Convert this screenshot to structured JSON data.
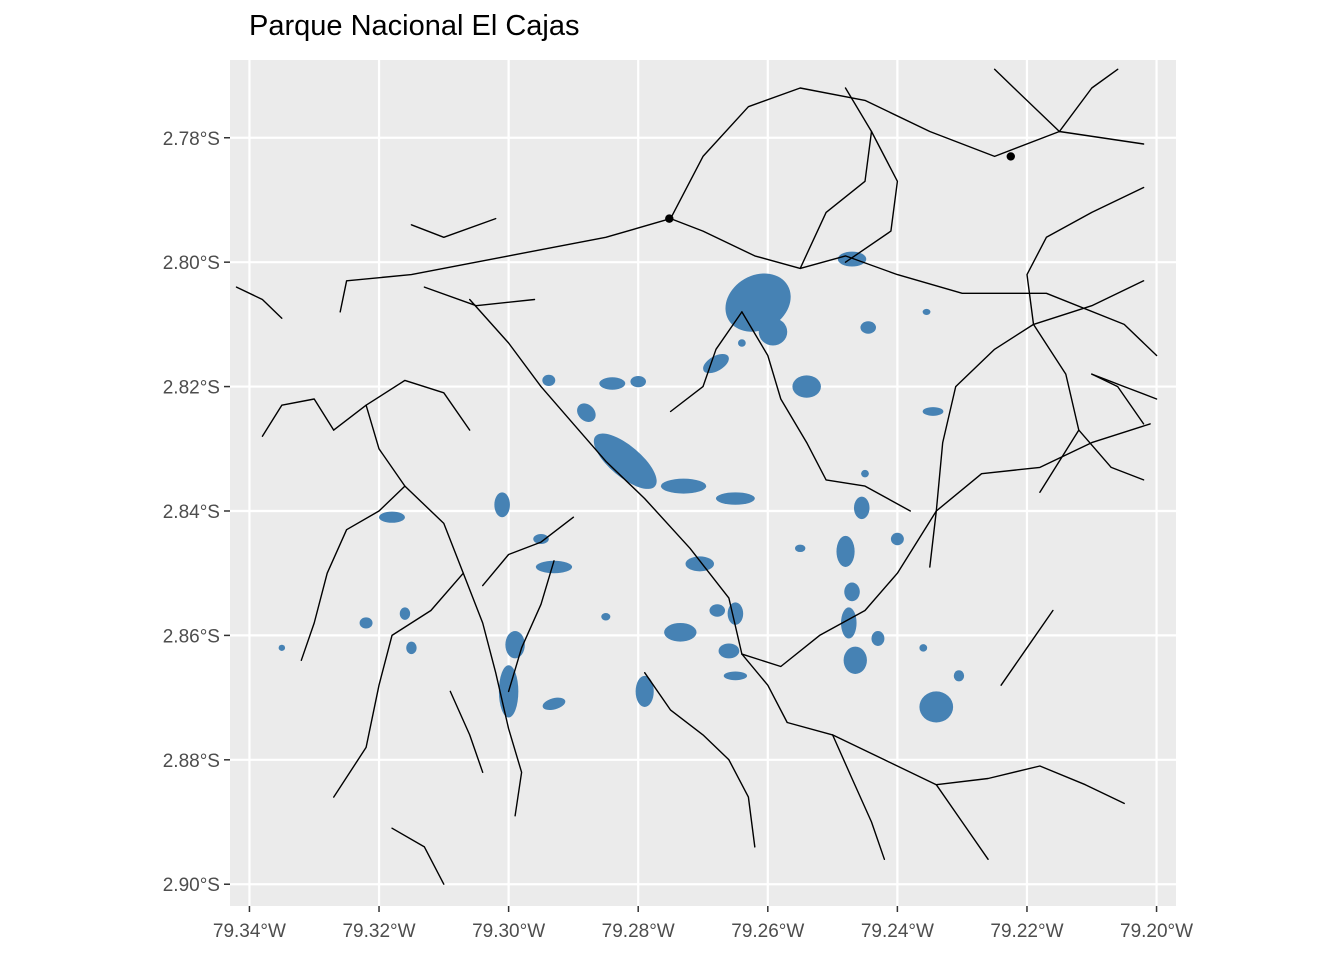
{
  "title": "Parque Nacional El Cajas",
  "colors": {
    "panel_background": "#ebebeb",
    "grid": "#ffffff",
    "lakes": "#4682b4",
    "rivers": "#000000",
    "tick_text": "#4d4d4d"
  },
  "axes": {
    "x": {
      "range": [
        -79.343,
        -79.197
      ],
      "ticks": [
        {
          "value": -79.34,
          "label": "79.34°W"
        },
        {
          "value": -79.32,
          "label": "79.32°W"
        },
        {
          "value": -79.3,
          "label": "79.30°W"
        },
        {
          "value": -79.28,
          "label": "79.28°W"
        },
        {
          "value": -79.26,
          "label": "79.26°W"
        },
        {
          "value": -79.24,
          "label": "79.24°W"
        },
        {
          "value": -79.22,
          "label": "79.22°W"
        },
        {
          "value": -79.2,
          "label": "79.20°W"
        }
      ]
    },
    "y": {
      "range": [
        -2.9035,
        -2.7675
      ],
      "ticks": [
        {
          "value": -2.78,
          "label": "2.78°S"
        },
        {
          "value": -2.8,
          "label": "2.80°S"
        },
        {
          "value": -2.82,
          "label": "2.82°S"
        },
        {
          "value": -2.84,
          "label": "2.84°S"
        },
        {
          "value": -2.86,
          "label": "2.86°S"
        },
        {
          "value": -2.88,
          "label": "2.88°S"
        },
        {
          "value": -2.9,
          "label": "2.90°S"
        }
      ]
    }
  },
  "lakes": [
    {
      "lon": -79.2615,
      "lat": -2.8065,
      "rx": 0.0042,
      "ry": 0.0055,
      "rot": 60
    },
    {
      "lon": -79.2592,
      "lat": -2.8112,
      "rx": 0.0022,
      "ry": 0.0022,
      "rot": 0
    },
    {
      "lon": -79.247,
      "lat": -2.7995,
      "rx": 0.0022,
      "ry": 0.0012,
      "rot": 0
    },
    {
      "lon": -79.268,
      "lat": -2.8163,
      "rx": 0.0022,
      "ry": 0.0012,
      "rot": -30
    },
    {
      "lon": -79.254,
      "lat": -2.82,
      "rx": 0.0022,
      "ry": 0.0018,
      "rot": 0
    },
    {
      "lon": -79.2445,
      "lat": -2.8105,
      "rx": 0.0012,
      "ry": 0.001,
      "rot": 0
    },
    {
      "lon": -79.2345,
      "lat": -2.824,
      "rx": 0.0016,
      "ry": 0.0007,
      "rot": 0
    },
    {
      "lon": -79.284,
      "lat": -2.8195,
      "rx": 0.002,
      "ry": 0.001,
      "rot": 0
    },
    {
      "lon": -79.28,
      "lat": -2.8192,
      "rx": 0.0012,
      "ry": 0.0009,
      "rot": 0
    },
    {
      "lon": -79.288,
      "lat": -2.8242,
      "rx": 0.0016,
      "ry": 0.0013,
      "rot": 45
    },
    {
      "lon": -79.2938,
      "lat": -2.819,
      "rx": 0.001,
      "ry": 0.0009,
      "rot": 0
    },
    {
      "lon": -79.282,
      "lat": -2.832,
      "rx": 0.006,
      "ry": 0.0025,
      "rot": 40
    },
    {
      "lon": -79.273,
      "lat": -2.836,
      "rx": 0.0035,
      "ry": 0.0012,
      "rot": 0
    },
    {
      "lon": -79.265,
      "lat": -2.838,
      "rx": 0.003,
      "ry": 0.001,
      "rot": 0
    },
    {
      "lon": -79.301,
      "lat": -2.839,
      "rx": 0.0012,
      "ry": 0.002,
      "rot": 0
    },
    {
      "lon": -79.318,
      "lat": -2.841,
      "rx": 0.002,
      "ry": 0.0009,
      "rot": 0
    },
    {
      "lon": -79.293,
      "lat": -2.849,
      "rx": 0.0028,
      "ry": 0.001,
      "rot": 0
    },
    {
      "lon": -79.295,
      "lat": -2.8445,
      "rx": 0.0012,
      "ry": 0.0008,
      "rot": 0
    },
    {
      "lon": -79.2705,
      "lat": -2.8485,
      "rx": 0.0022,
      "ry": 0.0012,
      "rot": 0
    },
    {
      "lon": -79.2678,
      "lat": -2.856,
      "rx": 0.0012,
      "ry": 0.001,
      "rot": 0
    },
    {
      "lon": -79.2735,
      "lat": -2.8595,
      "rx": 0.0025,
      "ry": 0.0015,
      "rot": 0
    },
    {
      "lon": -79.265,
      "lat": -2.8565,
      "rx": 0.0012,
      "ry": 0.0018,
      "rot": 0
    },
    {
      "lon": -79.266,
      "lat": -2.8625,
      "rx": 0.0016,
      "ry": 0.0012,
      "rot": 0
    },
    {
      "lon": -79.265,
      "lat": -2.8665,
      "rx": 0.0018,
      "ry": 0.0007,
      "rot": 0
    },
    {
      "lon": -79.299,
      "lat": -2.8615,
      "rx": 0.0015,
      "ry": 0.0022,
      "rot": 0
    },
    {
      "lon": -79.3,
      "lat": -2.869,
      "rx": 0.0015,
      "ry": 0.0042,
      "rot": 0
    },
    {
      "lon": -79.293,
      "lat": -2.871,
      "rx": 0.0018,
      "ry": 0.0009,
      "rot": -15
    },
    {
      "lon": -79.279,
      "lat": -2.869,
      "rx": 0.0014,
      "ry": 0.0025,
      "rot": 0
    },
    {
      "lon": -79.2455,
      "lat": -2.8395,
      "rx": 0.0012,
      "ry": 0.0018,
      "rot": 0
    },
    {
      "lon": -79.248,
      "lat": -2.8465,
      "rx": 0.0014,
      "ry": 0.0025,
      "rot": 0
    },
    {
      "lon": -79.247,
      "lat": -2.853,
      "rx": 0.0012,
      "ry": 0.0015,
      "rot": 0
    },
    {
      "lon": -79.2475,
      "lat": -2.858,
      "rx": 0.0012,
      "ry": 0.0025,
      "rot": 0
    },
    {
      "lon": -79.2465,
      "lat": -2.864,
      "rx": 0.0018,
      "ry": 0.0022,
      "rot": 0
    },
    {
      "lon": -79.243,
      "lat": -2.8605,
      "rx": 0.001,
      "ry": 0.0012,
      "rot": 0
    },
    {
      "lon": -79.24,
      "lat": -2.8445,
      "rx": 0.001,
      "ry": 0.001,
      "rot": 0
    },
    {
      "lon": -79.234,
      "lat": -2.8715,
      "rx": 0.0026,
      "ry": 0.0025,
      "rot": 0
    },
    {
      "lon": -79.2305,
      "lat": -2.8665,
      "rx": 0.0008,
      "ry": 0.0009,
      "rot": 0
    },
    {
      "lon": -79.236,
      "lat": -2.862,
      "rx": 0.0006,
      "ry": 0.0006,
      "rot": 0
    },
    {
      "lon": -79.322,
      "lat": -2.858,
      "rx": 0.001,
      "ry": 0.0009,
      "rot": 0
    },
    {
      "lon": -79.316,
      "lat": -2.8565,
      "rx": 0.0008,
      "ry": 0.001,
      "rot": 0
    },
    {
      "lon": -79.315,
      "lat": -2.862,
      "rx": 0.0008,
      "ry": 0.001,
      "rot": 0
    },
    {
      "lon": -79.264,
      "lat": -2.813,
      "rx": 0.0006,
      "ry": 0.0006,
      "rot": 0
    },
    {
      "lon": -79.2355,
      "lat": -2.808,
      "rx": 0.0006,
      "ry": 0.0005,
      "rot": 0
    },
    {
      "lon": -79.245,
      "lat": -2.834,
      "rx": 0.0006,
      "ry": 0.0006,
      "rot": 0
    },
    {
      "lon": -79.255,
      "lat": -2.846,
      "rx": 0.0008,
      "ry": 0.0006,
      "rot": 0
    },
    {
      "lon": -79.285,
      "lat": -2.857,
      "rx": 0.0007,
      "ry": 0.0006,
      "rot": 0
    },
    {
      "lon": -79.335,
      "lat": -2.862,
      "rx": 0.0005,
      "ry": 0.0005,
      "rot": 0
    }
  ],
  "rivers": [
    [
      [
        -79.275,
        -2.793
      ],
      [
        -79.27,
        -2.783
      ],
      [
        -79.263,
        -2.775
      ],
      [
        -79.255,
        -2.772
      ],
      [
        -79.245,
        -2.774
      ],
      [
        -79.235,
        -2.779
      ],
      [
        -79.225,
        -2.783
      ],
      [
        -79.215,
        -2.779
      ],
      [
        -79.202,
        -2.781
      ]
    ],
    [
      [
        -79.275,
        -2.793
      ],
      [
        -79.285,
        -2.796
      ],
      [
        -79.3,
        -2.799
      ],
      [
        -79.315,
        -2.802
      ],
      [
        -79.325,
        -2.803
      ],
      [
        -79.326,
        -2.808
      ]
    ],
    [
      [
        -79.342,
        -2.804
      ],
      [
        -79.338,
        -2.806
      ],
      [
        -79.335,
        -2.809
      ]
    ],
    [
      [
        -79.302,
        -2.793
      ],
      [
        -79.31,
        -2.796
      ],
      [
        -79.315,
        -2.794
      ]
    ],
    [
      [
        -79.313,
        -2.804
      ],
      [
        -79.305,
        -2.807
      ],
      [
        -79.296,
        -2.806
      ]
    ],
    [
      [
        -79.275,
        -2.793
      ],
      [
        -79.27,
        -2.795
      ],
      [
        -79.262,
        -2.799
      ],
      [
        -79.255,
        -2.801
      ],
      [
        -79.248,
        -2.799
      ],
      [
        -79.24,
        -2.802
      ],
      [
        -79.23,
        -2.805
      ],
      [
        -79.217,
        -2.805
      ],
      [
        -79.205,
        -2.81
      ],
      [
        -79.2,
        -2.815
      ]
    ],
    [
      [
        -79.306,
        -2.806
      ],
      [
        -79.3,
        -2.813
      ],
      [
        -79.295,
        -2.82
      ],
      [
        -79.29,
        -2.826
      ],
      [
        -79.285,
        -2.832
      ],
      [
        -79.279,
        -2.838
      ],
      [
        -79.272,
        -2.846
      ],
      [
        -79.266,
        -2.854
      ],
      [
        -79.264,
        -2.863
      ]
    ],
    [
      [
        -79.264,
        -2.863
      ],
      [
        -79.258,
        -2.865
      ],
      [
        -79.252,
        -2.86
      ],
      [
        -79.245,
        -2.856
      ],
      [
        -79.24,
        -2.85
      ],
      [
        -79.234,
        -2.84
      ],
      [
        -79.227,
        -2.834
      ],
      [
        -79.218,
        -2.833
      ],
      [
        -79.21,
        -2.829
      ],
      [
        -79.201,
        -2.826
      ]
    ],
    [
      [
        -79.264,
        -2.808
      ],
      [
        -79.26,
        -2.815
      ],
      [
        -79.258,
        -2.822
      ],
      [
        -79.254,
        -2.829
      ],
      [
        -79.251,
        -2.835
      ],
      [
        -79.245,
        -2.836
      ],
      [
        -79.238,
        -2.84
      ]
    ],
    [
      [
        -79.264,
        -2.808
      ],
      [
        -79.268,
        -2.814
      ],
      [
        -79.27,
        -2.82
      ],
      [
        -79.275,
        -2.824
      ]
    ],
    [
      [
        -79.255,
        -2.801
      ],
      [
        -79.251,
        -2.792
      ],
      [
        -79.245,
        -2.787
      ],
      [
        -79.244,
        -2.779
      ],
      [
        -79.248,
        -2.772
      ]
    ],
    [
      [
        -79.244,
        -2.779
      ],
      [
        -79.24,
        -2.787
      ],
      [
        -79.241,
        -2.795
      ],
      [
        -79.248,
        -2.8
      ]
    ],
    [
      [
        -79.202,
        -2.788
      ],
      [
        -79.21,
        -2.792
      ],
      [
        -79.217,
        -2.796
      ],
      [
        -79.22,
        -2.802
      ],
      [
        -79.219,
        -2.81
      ],
      [
        -79.214,
        -2.818
      ],
      [
        -79.212,
        -2.827
      ],
      [
        -79.218,
        -2.837
      ]
    ],
    [
      [
        -79.219,
        -2.81
      ],
      [
        -79.225,
        -2.814
      ],
      [
        -79.231,
        -2.82
      ],
      [
        -79.233,
        -2.829
      ],
      [
        -79.234,
        -2.84
      ],
      [
        -79.235,
        -2.849
      ]
    ],
    [
      [
        -79.212,
        -2.827
      ],
      [
        -79.207,
        -2.833
      ],
      [
        -79.202,
        -2.835
      ]
    ],
    [
      [
        -79.21,
        -2.818
      ],
      [
        -79.205,
        -2.82
      ],
      [
        -79.2,
        -2.822
      ]
    ],
    [
      [
        -79.202,
        -2.803
      ],
      [
        -79.21,
        -2.807
      ],
      [
        -79.219,
        -2.81
      ]
    ],
    [
      [
        -79.215,
        -2.779
      ],
      [
        -79.222,
        -2.772
      ],
      [
        -79.225,
        -2.769
      ]
    ],
    [
      [
        -79.215,
        -2.779
      ],
      [
        -79.21,
        -2.772
      ],
      [
        -79.206,
        -2.769
      ]
    ],
    [
      [
        -79.202,
        -2.826
      ],
      [
        -79.206,
        -2.82
      ],
      [
        -79.21,
        -2.818
      ]
    ],
    [
      [
        -79.306,
        -2.827
      ],
      [
        -79.31,
        -2.821
      ],
      [
        -79.316,
        -2.819
      ],
      [
        -79.322,
        -2.823
      ],
      [
        -79.327,
        -2.827
      ]
    ],
    [
      [
        -79.327,
        -2.827
      ],
      [
        -79.33,
        -2.822
      ],
      [
        -79.335,
        -2.823
      ],
      [
        -79.338,
        -2.828
      ]
    ],
    [
      [
        -79.322,
        -2.823
      ],
      [
        -79.32,
        -2.83
      ],
      [
        -79.316,
        -2.836
      ],
      [
        -79.31,
        -2.842
      ],
      [
        -79.307,
        -2.85
      ],
      [
        -79.304,
        -2.858
      ],
      [
        -79.302,
        -2.866
      ],
      [
        -79.3,
        -2.875
      ],
      [
        -79.298,
        -2.882
      ],
      [
        -79.299,
        -2.889
      ]
    ],
    [
      [
        -79.316,
        -2.836
      ],
      [
        -79.32,
        -2.84
      ],
      [
        -79.325,
        -2.843
      ],
      [
        -79.328,
        -2.85
      ],
      [
        -79.33,
        -2.858
      ],
      [
        -79.332,
        -2.864
      ]
    ],
    [
      [
        -79.307,
        -2.85
      ],
      [
        -79.312,
        -2.856
      ],
      [
        -79.318,
        -2.86
      ],
      [
        -79.32,
        -2.868
      ],
      [
        -79.322,
        -2.878
      ],
      [
        -79.327,
        -2.886
      ]
    ],
    [
      [
        -79.29,
        -2.841
      ],
      [
        -79.295,
        -2.845
      ],
      [
        -79.3,
        -2.847
      ],
      [
        -79.304,
        -2.852
      ]
    ],
    [
      [
        -79.293,
        -2.848
      ],
      [
        -79.295,
        -2.855
      ],
      [
        -79.298,
        -2.862
      ],
      [
        -79.3,
        -2.869
      ]
    ],
    [
      [
        -79.279,
        -2.866
      ],
      [
        -79.275,
        -2.872
      ],
      [
        -79.27,
        -2.876
      ],
      [
        -79.266,
        -2.88
      ],
      [
        -79.263,
        -2.886
      ],
      [
        -79.262,
        -2.894
      ]
    ],
    [
      [
        -79.264,
        -2.863
      ],
      [
        -79.26,
        -2.868
      ],
      [
        -79.257,
        -2.874
      ],
      [
        -79.25,
        -2.876
      ],
      [
        -79.242,
        -2.88
      ],
      [
        -79.234,
        -2.884
      ],
      [
        -79.226,
        -2.883
      ],
      [
        -79.218,
        -2.881
      ],
      [
        -79.211,
        -2.884
      ],
      [
        -79.205,
        -2.887
      ]
    ],
    [
      [
        -79.25,
        -2.876
      ],
      [
        -79.247,
        -2.883
      ],
      [
        -79.244,
        -2.89
      ],
      [
        -79.242,
        -2.896
      ]
    ],
    [
      [
        -79.234,
        -2.884
      ],
      [
        -79.23,
        -2.89
      ],
      [
        -79.226,
        -2.896
      ]
    ],
    [
      [
        -79.216,
        -2.856
      ],
      [
        -79.22,
        -2.862
      ],
      [
        -79.224,
        -2.868
      ]
    ],
    [
      [
        -79.309,
        -2.869
      ],
      [
        -79.306,
        -2.876
      ],
      [
        -79.304,
        -2.882
      ]
    ],
    [
      [
        -79.318,
        -2.891
      ],
      [
        -79.313,
        -2.894
      ],
      [
        -79.31,
        -2.9
      ]
    ]
  ],
  "junctions": [
    {
      "lon": -79.2752,
      "lat": -2.793
    },
    {
      "lon": -79.2225,
      "lat": -2.783
    }
  ]
}
